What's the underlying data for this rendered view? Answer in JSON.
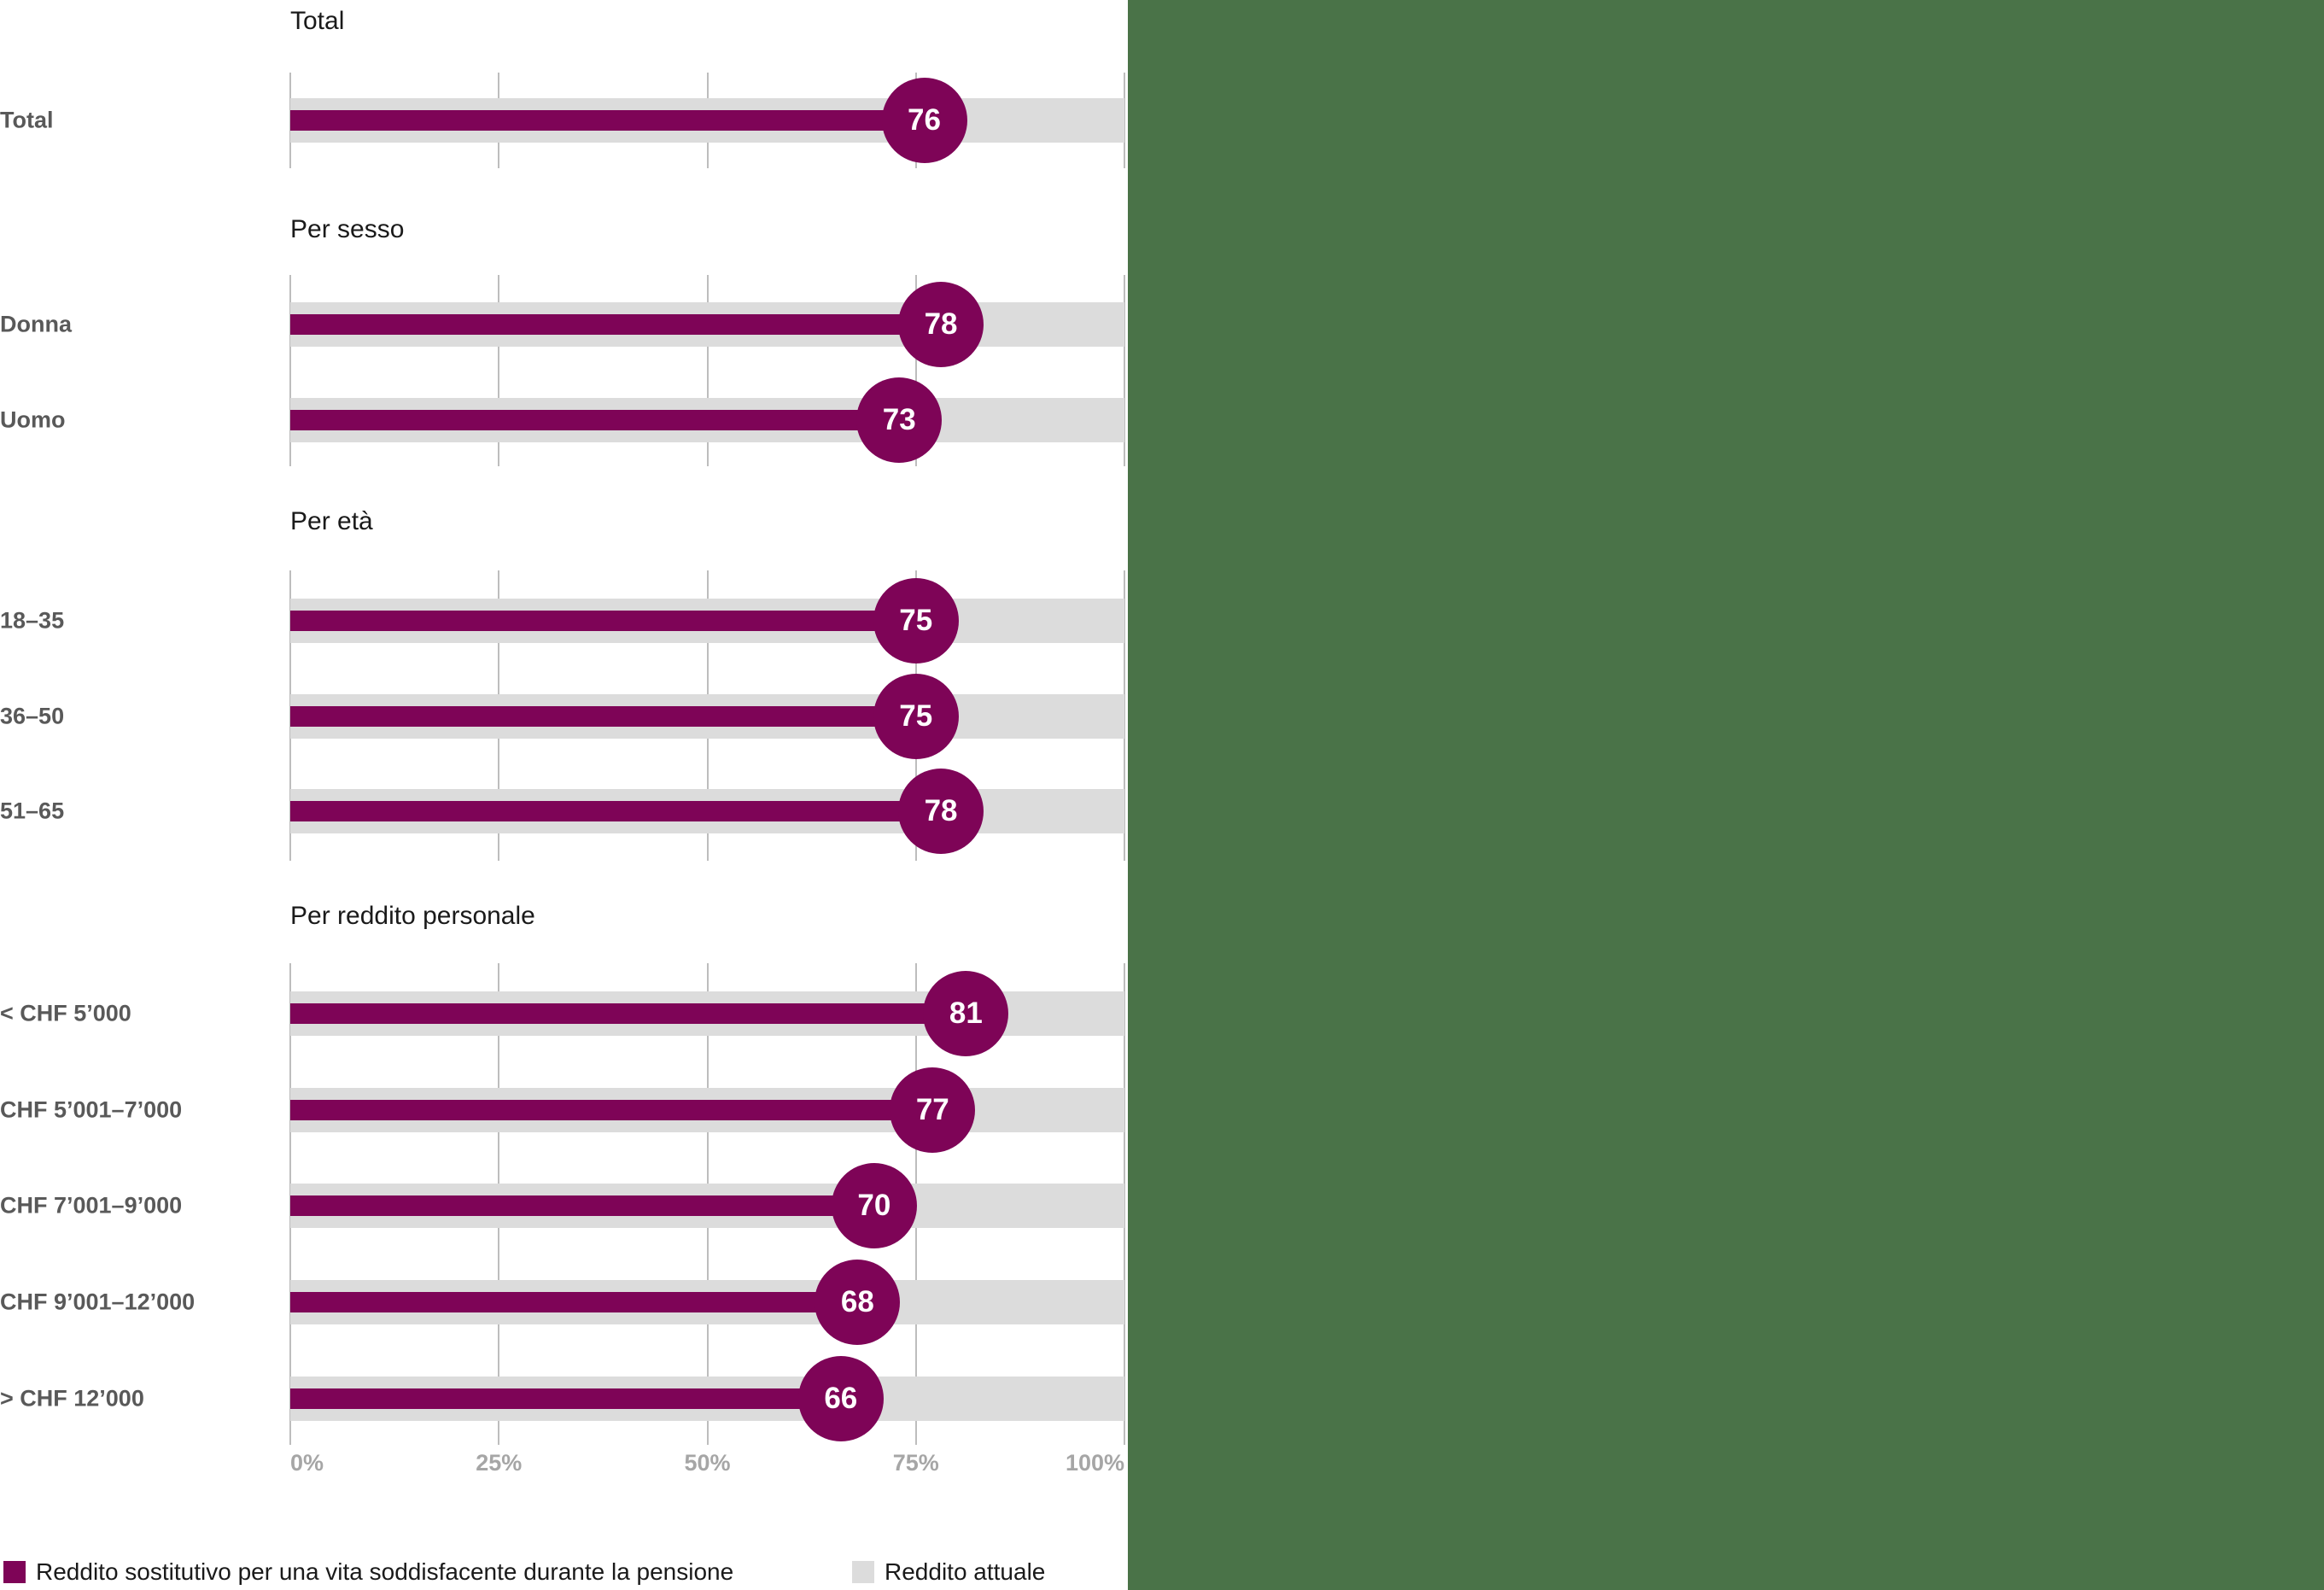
{
  "chart_data": {
    "type": "bar",
    "orientation": "horizontal",
    "value_unit": "percent",
    "x_range": [
      0,
      100
    ],
    "x_ticks": [
      "0%",
      "25%",
      "50%",
      "75%",
      "100%"
    ],
    "grid": true,
    "legend_position": "bottom-left",
    "sections": [
      {
        "title": "Total",
        "rows": [
          {
            "label": "Total",
            "value": 76
          }
        ]
      },
      {
        "title": "Per sesso",
        "rows": [
          {
            "label": "Donna",
            "value": 78
          },
          {
            "label": "Uomo",
            "value": 73
          }
        ]
      },
      {
        "title": "Per età",
        "rows": [
          {
            "label": "18–35",
            "value": 75
          },
          {
            "label": "36–50",
            "value": 75
          },
          {
            "label": "51–65",
            "value": 78
          }
        ]
      },
      {
        "title": "Per reddito personale",
        "rows": [
          {
            "label": "< CHF 5’000",
            "value": 81
          },
          {
            "label": "CHF 5’001–7’000",
            "value": 77
          },
          {
            "label": "CHF 7’001–9’000",
            "value": 70
          },
          {
            "label": "CHF 9’001–12’000",
            "value": 68
          },
          {
            "label": "> CHF 12’000",
            "value": 66
          }
        ]
      }
    ],
    "series": [
      {
        "name": "Reddito sostitutivo per una vita soddisfacente durante la pensione",
        "color": "#7e0457"
      },
      {
        "name": "Reddito attuale",
        "color": "#dcdcdc"
      }
    ]
  },
  "colors": {
    "value_bar": "#7e0457",
    "track_bar": "#dcdcdc",
    "gridline": "#bdbdbd",
    "side_panel_green": "#4a7348",
    "row_label": "#595959",
    "axis_label": "#a6a6a6",
    "section_title": "#1a1a1a",
    "badge_text": "#ffffff",
    "legend_text": "#1a1a1a"
  }
}
